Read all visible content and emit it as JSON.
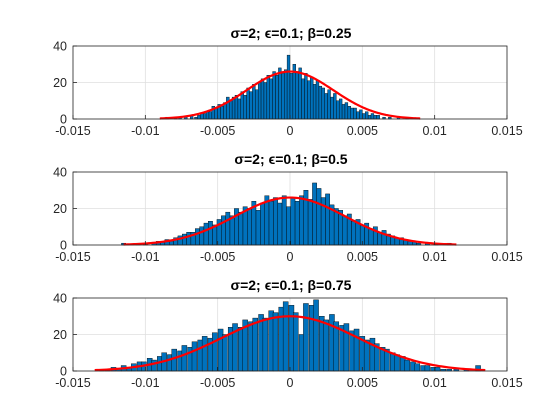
{
  "chart_data": [
    {
      "type": "bar",
      "title": "σ=2; ϵ=0.1; β=0.25",
      "xlim": [
        -0.015,
        0.015
      ],
      "ylim": [
        0,
        40
      ],
      "xticks": [
        "-0.015",
        "-0.01",
        "-0.005",
        "0",
        "0.005",
        "0.01",
        "0.015"
      ],
      "yticks": [
        "0",
        "20",
        "40"
      ],
      "grid": true,
      "bin_width": 0.0002,
      "histogram_color": "#0072BD",
      "fit_color": "#FF0000",
      "fit": {
        "type": "normal",
        "mean": 0.0,
        "std": 0.003,
        "peak": 26
      },
      "bins": [
        {
          "x": -0.0085,
          "y": 1
        },
        {
          "x": -0.0079,
          "y": 1
        },
        {
          "x": -0.0076,
          "y": 1
        },
        {
          "x": -0.0072,
          "y": 1
        },
        {
          "x": -0.0068,
          "y": 2
        },
        {
          "x": -0.0065,
          "y": 1
        },
        {
          "x": -0.0063,
          "y": 2
        },
        {
          "x": -0.0061,
          "y": 3
        },
        {
          "x": -0.0059,
          "y": 3
        },
        {
          "x": -0.0057,
          "y": 4
        },
        {
          "x": -0.0055,
          "y": 4
        },
        {
          "x": -0.0053,
          "y": 7
        },
        {
          "x": -0.0051,
          "y": 6
        },
        {
          "x": -0.0049,
          "y": 8
        },
        {
          "x": -0.0047,
          "y": 7
        },
        {
          "x": -0.0045,
          "y": 9
        },
        {
          "x": -0.0043,
          "y": 12
        },
        {
          "x": -0.0041,
          "y": 10
        },
        {
          "x": -0.0039,
          "y": 12
        },
        {
          "x": -0.0037,
          "y": 13
        },
        {
          "x": -0.0035,
          "y": 11
        },
        {
          "x": -0.0033,
          "y": 15
        },
        {
          "x": -0.0031,
          "y": 13
        },
        {
          "x": -0.0029,
          "y": 17
        },
        {
          "x": -0.0027,
          "y": 15
        },
        {
          "x": -0.0025,
          "y": 19
        },
        {
          "x": -0.0023,
          "y": 16
        },
        {
          "x": -0.0021,
          "y": 20
        },
        {
          "x": -0.0019,
          "y": 22
        },
        {
          "x": -0.0017,
          "y": 20
        },
        {
          "x": -0.0015,
          "y": 24
        },
        {
          "x": -0.0013,
          "y": 22
        },
        {
          "x": -0.0011,
          "y": 26
        },
        {
          "x": -0.0009,
          "y": 24
        },
        {
          "x": -0.0007,
          "y": 28
        },
        {
          "x": -0.0005,
          "y": 25
        },
        {
          "x": -0.0003,
          "y": 27
        },
        {
          "x": -0.0001,
          "y": 35
        },
        {
          "x": 0.0001,
          "y": 25
        },
        {
          "x": 0.0003,
          "y": 30
        },
        {
          "x": 0.0005,
          "y": 26
        },
        {
          "x": 0.0007,
          "y": 28
        },
        {
          "x": 0.0009,
          "y": 22
        },
        {
          "x": 0.0011,
          "y": 25
        },
        {
          "x": 0.0013,
          "y": 21
        },
        {
          "x": 0.0015,
          "y": 23
        },
        {
          "x": 0.0017,
          "y": 19
        },
        {
          "x": 0.0019,
          "y": 21
        },
        {
          "x": 0.0021,
          "y": 18
        },
        {
          "x": 0.0023,
          "y": 17
        },
        {
          "x": 0.0025,
          "y": 14
        },
        {
          "x": 0.0027,
          "y": 16
        },
        {
          "x": 0.0029,
          "y": 12
        },
        {
          "x": 0.0031,
          "y": 14
        },
        {
          "x": 0.0033,
          "y": 10
        },
        {
          "x": 0.0035,
          "y": 11
        },
        {
          "x": 0.0037,
          "y": 8
        },
        {
          "x": 0.0039,
          "y": 9
        },
        {
          "x": 0.0041,
          "y": 7
        },
        {
          "x": 0.0043,
          "y": 6
        },
        {
          "x": 0.0045,
          "y": 6
        },
        {
          "x": 0.0047,
          "y": 4
        },
        {
          "x": 0.0049,
          "y": 5
        },
        {
          "x": 0.0051,
          "y": 3
        },
        {
          "x": 0.0053,
          "y": 4
        },
        {
          "x": 0.0055,
          "y": 2
        },
        {
          "x": 0.0057,
          "y": 3
        },
        {
          "x": 0.0059,
          "y": 2
        },
        {
          "x": 0.0061,
          "y": 2
        },
        {
          "x": 0.0065,
          "y": 1
        },
        {
          "x": 0.0069,
          "y": 1
        },
        {
          "x": 0.0075,
          "y": 1
        },
        {
          "x": 0.0081,
          "y": 1
        }
      ]
    },
    {
      "type": "bar",
      "title": "σ=2; ϵ=0.1; β=0.5",
      "xlim": [
        -0.015,
        0.015
      ],
      "ylim": [
        0,
        40
      ],
      "xticks": [
        "-0.015",
        "-0.01",
        "-0.005",
        "0",
        "0.005",
        "0.01",
        "0.015"
      ],
      "yticks": [
        "0",
        "20",
        "40"
      ],
      "grid": true,
      "bin_width": 0.0003,
      "histogram_color": "#0072BD",
      "fit_color": "#FF0000",
      "fit": {
        "type": "normal",
        "mean": 0.0,
        "std": 0.0038,
        "peak": 26,
        "x_range": [
          -0.0115,
          0.0115
        ]
      },
      "bins": [
        {
          "x": -0.0115,
          "y": 1
        },
        {
          "x": -0.0105,
          "y": 1
        },
        {
          "x": -0.01,
          "y": 1
        },
        {
          "x": -0.0094,
          "y": 1
        },
        {
          "x": -0.0091,
          "y": 2
        },
        {
          "x": -0.0088,
          "y": 2
        },
        {
          "x": -0.0085,
          "y": 3
        },
        {
          "x": -0.0082,
          "y": 2
        },
        {
          "x": -0.0079,
          "y": 4
        },
        {
          "x": -0.0076,
          "y": 5
        },
        {
          "x": -0.0073,
          "y": 6
        },
        {
          "x": -0.007,
          "y": 7
        },
        {
          "x": -0.0067,
          "y": 7
        },
        {
          "x": -0.0064,
          "y": 9
        },
        {
          "x": -0.0061,
          "y": 10
        },
        {
          "x": -0.0058,
          "y": 12
        },
        {
          "x": -0.0055,
          "y": 13
        },
        {
          "x": -0.0052,
          "y": 11
        },
        {
          "x": -0.0049,
          "y": 14
        },
        {
          "x": -0.0046,
          "y": 16
        },
        {
          "x": -0.0043,
          "y": 18
        },
        {
          "x": -0.004,
          "y": 16
        },
        {
          "x": -0.0037,
          "y": 20
        },
        {
          "x": -0.0034,
          "y": 18
        },
        {
          "x": -0.0031,
          "y": 21
        },
        {
          "x": -0.0028,
          "y": 20
        },
        {
          "x": -0.0025,
          "y": 24
        },
        {
          "x": -0.0022,
          "y": 19
        },
        {
          "x": -0.0019,
          "y": 23
        },
        {
          "x": -0.0016,
          "y": 27
        },
        {
          "x": -0.0013,
          "y": 24
        },
        {
          "x": -0.001,
          "y": 26
        },
        {
          "x": -0.0007,
          "y": 23
        },
        {
          "x": -0.0004,
          "y": 27
        },
        {
          "x": -0.0001,
          "y": 21
        },
        {
          "x": 0.0002,
          "y": 26
        },
        {
          "x": 0.0005,
          "y": 24
        },
        {
          "x": 0.0008,
          "y": 27
        },
        {
          "x": 0.0011,
          "y": 30
        },
        {
          "x": 0.0014,
          "y": 25
        },
        {
          "x": 0.0017,
          "y": 34
        },
        {
          "x": 0.002,
          "y": 31
        },
        {
          "x": 0.0023,
          "y": 26
        },
        {
          "x": 0.0026,
          "y": 28
        },
        {
          "x": 0.0029,
          "y": 22
        },
        {
          "x": 0.0032,
          "y": 20
        },
        {
          "x": 0.0035,
          "y": 19
        },
        {
          "x": 0.0038,
          "y": 16
        },
        {
          "x": 0.0041,
          "y": 17
        },
        {
          "x": 0.0044,
          "y": 13
        },
        {
          "x": 0.0047,
          "y": 14
        },
        {
          "x": 0.005,
          "y": 11
        },
        {
          "x": 0.0053,
          "y": 12
        },
        {
          "x": 0.0056,
          "y": 9
        },
        {
          "x": 0.0059,
          "y": 10
        },
        {
          "x": 0.0062,
          "y": 7
        },
        {
          "x": 0.0065,
          "y": 8
        },
        {
          "x": 0.0068,
          "y": 6
        },
        {
          "x": 0.0071,
          "y": 5
        },
        {
          "x": 0.0074,
          "y": 4
        },
        {
          "x": 0.0077,
          "y": 4
        },
        {
          "x": 0.008,
          "y": 3
        },
        {
          "x": 0.0083,
          "y": 2
        },
        {
          "x": 0.0086,
          "y": 2
        },
        {
          "x": 0.0089,
          "y": 1
        },
        {
          "x": 0.0095,
          "y": 1
        },
        {
          "x": 0.0101,
          "y": 1
        },
        {
          "x": 0.011,
          "y": 1
        }
      ]
    },
    {
      "type": "bar",
      "title": "σ=2; ϵ=0.1; β=0.75",
      "xlim": [
        -0.015,
        0.015
      ],
      "ylim": [
        0,
        40
      ],
      "xticks": [
        "-0.015",
        "-0.01",
        "-0.005",
        "0",
        "0.005",
        "0.01",
        "0.015"
      ],
      "yticks": [
        "0",
        "20",
        "40"
      ],
      "grid": true,
      "bin_width": 0.00035,
      "histogram_color": "#0072BD",
      "fit_color": "#FF0000",
      "fit": {
        "type": "normal",
        "mean": 0.0,
        "std": 0.0047,
        "peak": 30,
        "x_range": [
          -0.0135,
          0.0135
        ]
      },
      "bins": [
        {
          "x": -0.013,
          "y": 1
        },
        {
          "x": -0.0126,
          "y": 1
        },
        {
          "x": -0.0122,
          "y": 2
        },
        {
          "x": -0.0118,
          "y": 1
        },
        {
          "x": -0.0115,
          "y": 3
        },
        {
          "x": -0.0111,
          "y": 2
        },
        {
          "x": -0.0108,
          "y": 4
        },
        {
          "x": -0.0104,
          "y": 5
        },
        {
          "x": -0.0101,
          "y": 5
        },
        {
          "x": -0.0097,
          "y": 7
        },
        {
          "x": -0.0094,
          "y": 6
        },
        {
          "x": -0.009,
          "y": 8
        },
        {
          "x": -0.0087,
          "y": 10
        },
        {
          "x": -0.0083,
          "y": 9
        },
        {
          "x": -0.008,
          "y": 12
        },
        {
          "x": -0.0076,
          "y": 11
        },
        {
          "x": -0.0073,
          "y": 14
        },
        {
          "x": -0.0069,
          "y": 13
        },
        {
          "x": -0.0066,
          "y": 16
        },
        {
          "x": -0.0062,
          "y": 17
        },
        {
          "x": -0.0059,
          "y": 19
        },
        {
          "x": -0.0055,
          "y": 18
        },
        {
          "x": -0.0052,
          "y": 21
        },
        {
          "x": -0.0048,
          "y": 23
        },
        {
          "x": -0.0045,
          "y": 20
        },
        {
          "x": -0.0041,
          "y": 24
        },
        {
          "x": -0.0038,
          "y": 26
        },
        {
          "x": -0.0034,
          "y": 24
        },
        {
          "x": -0.0031,
          "y": 28
        },
        {
          "x": -0.0027,
          "y": 27
        },
        {
          "x": -0.0024,
          "y": 29
        },
        {
          "x": -0.002,
          "y": 31
        },
        {
          "x": -0.0017,
          "y": 29
        },
        {
          "x": -0.0013,
          "y": 33
        },
        {
          "x": -0.001,
          "y": 32
        },
        {
          "x": -0.0006,
          "y": 35
        },
        {
          "x": -0.0003,
          "y": 38
        },
        {
          "x": 0.0001,
          "y": 36
        },
        {
          "x": 0.0004,
          "y": 32
        },
        {
          "x": 0.0008,
          "y": 20
        },
        {
          "x": 0.0011,
          "y": 37
        },
        {
          "x": 0.0015,
          "y": 36
        },
        {
          "x": 0.0018,
          "y": 39
        },
        {
          "x": 0.0022,
          "y": 30
        },
        {
          "x": 0.0025,
          "y": 28
        },
        {
          "x": 0.0029,
          "y": 31
        },
        {
          "x": 0.0032,
          "y": 27
        },
        {
          "x": 0.0036,
          "y": 25
        },
        {
          "x": 0.0039,
          "y": 26
        },
        {
          "x": 0.0043,
          "y": 22
        },
        {
          "x": 0.0046,
          "y": 23
        },
        {
          "x": 0.005,
          "y": 19
        },
        {
          "x": 0.0053,
          "y": 17
        },
        {
          "x": 0.0057,
          "y": 18
        },
        {
          "x": 0.006,
          "y": 15
        },
        {
          "x": 0.0064,
          "y": 13
        },
        {
          "x": 0.0067,
          "y": 12
        },
        {
          "x": 0.0071,
          "y": 10
        },
        {
          "x": 0.0074,
          "y": 9
        },
        {
          "x": 0.0078,
          "y": 8
        },
        {
          "x": 0.0081,
          "y": 6
        },
        {
          "x": 0.0085,
          "y": 5
        },
        {
          "x": 0.0088,
          "y": 4
        },
        {
          "x": 0.0092,
          "y": 3
        },
        {
          "x": 0.0095,
          "y": 3
        },
        {
          "x": 0.0099,
          "y": 2
        },
        {
          "x": 0.0102,
          "y": 2
        },
        {
          "x": 0.0106,
          "y": 1
        },
        {
          "x": 0.011,
          "y": 1
        },
        {
          "x": 0.0115,
          "y": 1
        },
        {
          "x": 0.0122,
          "y": 1
        },
        {
          "x": 0.013,
          "y": 3
        }
      ]
    }
  ]
}
